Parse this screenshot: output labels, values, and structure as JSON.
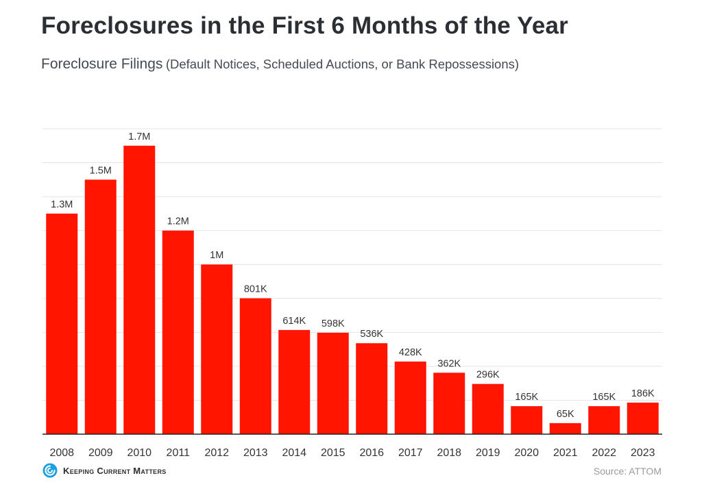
{
  "header": {
    "title": "Foreclosures in the First 6 Months of the Year",
    "subtitle_main": "Foreclosure Filings",
    "subtitle_paren": "(Default Notices, Scheduled Auctions, or Bank Repossessions)"
  },
  "footer": {
    "logo_text": "Keeping Current Matters",
    "source": "Source: ATTOM"
  },
  "colors": {
    "bar": "#ff1500",
    "grid": "#e4e4e4",
    "axis": "#222222",
    "text": "#333333",
    "logo": "#1aa0dc"
  },
  "chart_data": {
    "type": "bar",
    "title": "Foreclosures in the First 6 Months of the Year",
    "subtitle": "Foreclosure Filings (Default Notices, Scheduled Auctions, or Bank Repossessions)",
    "xlabel": "",
    "ylabel": "",
    "categories": [
      "2008",
      "2009",
      "2010",
      "2011",
      "2012",
      "2013",
      "2014",
      "2015",
      "2016",
      "2017",
      "2018",
      "2019",
      "2020",
      "2021",
      "2022",
      "2023"
    ],
    "values": [
      1300000,
      1500000,
      1700000,
      1200000,
      1000000,
      801000,
      614000,
      598000,
      536000,
      428000,
      362000,
      296000,
      165000,
      65000,
      165000,
      186000
    ],
    "labels": [
      "1.3M",
      "1.5M",
      "1.7M",
      "1.2M",
      "1M",
      "801K",
      "614K",
      "598K",
      "536K",
      "428K",
      "362K",
      "296K",
      "165K",
      "65K",
      "165K",
      "186K"
    ],
    "ylim": [
      0,
      1800000
    ],
    "grid": true,
    "y_tick_labels_shown": false,
    "legend": "none"
  }
}
